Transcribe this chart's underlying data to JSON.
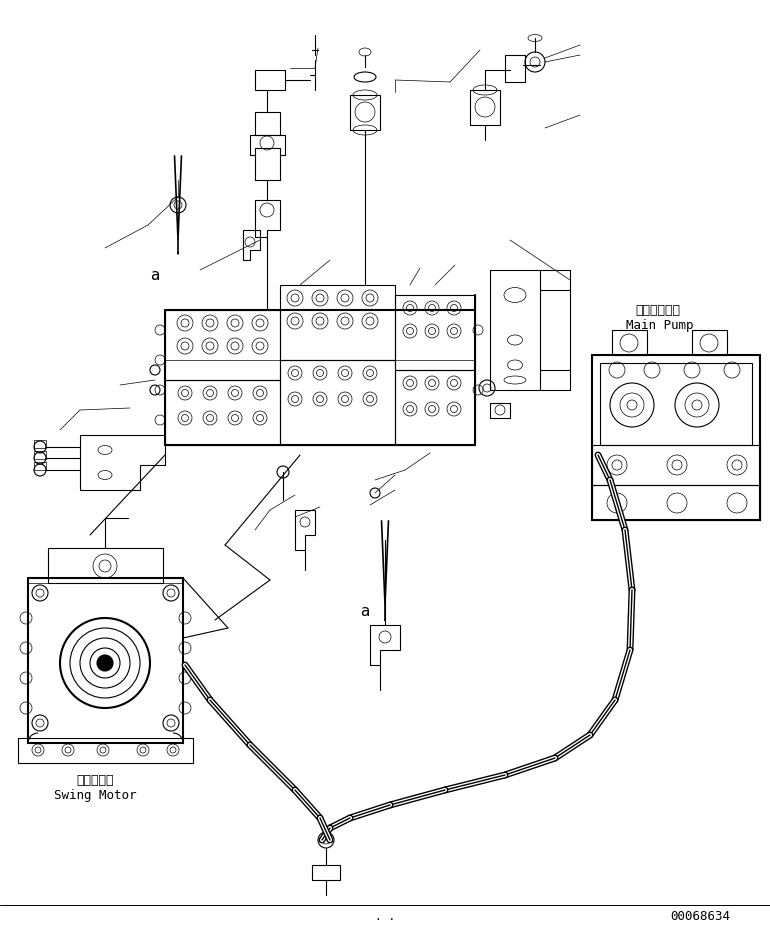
{
  "background_color": "#ffffff",
  "line_color": "#000000",
  "fig_width": 7.7,
  "fig_height": 9.26,
  "dpi": 100,
  "labels": {
    "main_pump_jp": "メインポンプ",
    "main_pump_en": "Main Pump",
    "swing_motor_jp": "旋回モータ",
    "swing_motor_en": "Swing Motor",
    "label_a1": "a",
    "label_a2": "a",
    "part_number": "00068634"
  }
}
